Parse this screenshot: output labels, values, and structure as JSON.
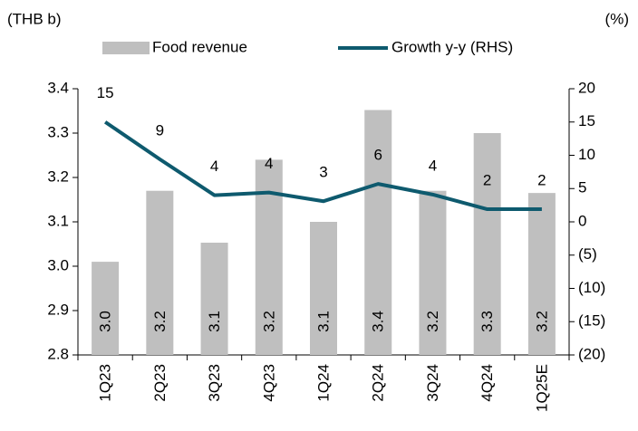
{
  "chart_data": {
    "type": "bar-line",
    "y_label": "(THB b)",
    "y2_label": "(%)",
    "categories": [
      "1Q23",
      "2Q23",
      "3Q23",
      "4Q23",
      "1Q24",
      "2Q24",
      "3Q24",
      "4Q24",
      "1Q25E"
    ],
    "series": [
      {
        "name": "Food revenue",
        "type": "bar",
        "color": "#bfbfbf",
        "values": [
          3.01,
          3.17,
          3.053,
          3.24,
          3.1,
          3.352,
          3.17,
          3.3,
          3.165
        ],
        "value_labels": [
          "3.0",
          "3.2",
          "3.1",
          "3.2",
          "3.1",
          "3.4",
          "3.2",
          "3.3",
          "3.2"
        ]
      },
      {
        "name": "Growth y-y (RHS)",
        "type": "line",
        "axis": "y2",
        "color": "#0e5a6e",
        "values": [
          15,
          9.4,
          4.0,
          4.4,
          3.1,
          5.7,
          4.1,
          1.9,
          1.9
        ],
        "value_labels": [
          "15",
          "9",
          "4",
          "4",
          "3",
          "6",
          "4",
          "2",
          "2"
        ]
      }
    ],
    "ylim": [
      2.8,
      3.4
    ],
    "yticks": [
      2.8,
      2.9,
      {
        "value": 3,
        "label": "3.0"
      },
      3.1,
      3.2,
      3.3,
      3.4
    ],
    "y2lim": [
      -20,
      20
    ],
    "y2ticks": [
      {
        "value": -20,
        "label": "(20)"
      },
      {
        "value": -15,
        "label": "(15)"
      },
      {
        "value": -10,
        "label": "(10)"
      },
      {
        "value": -5,
        "label": "(5)"
      },
      0,
      5,
      10,
      15,
      20
    ],
    "grid": false,
    "legend": "top"
  }
}
